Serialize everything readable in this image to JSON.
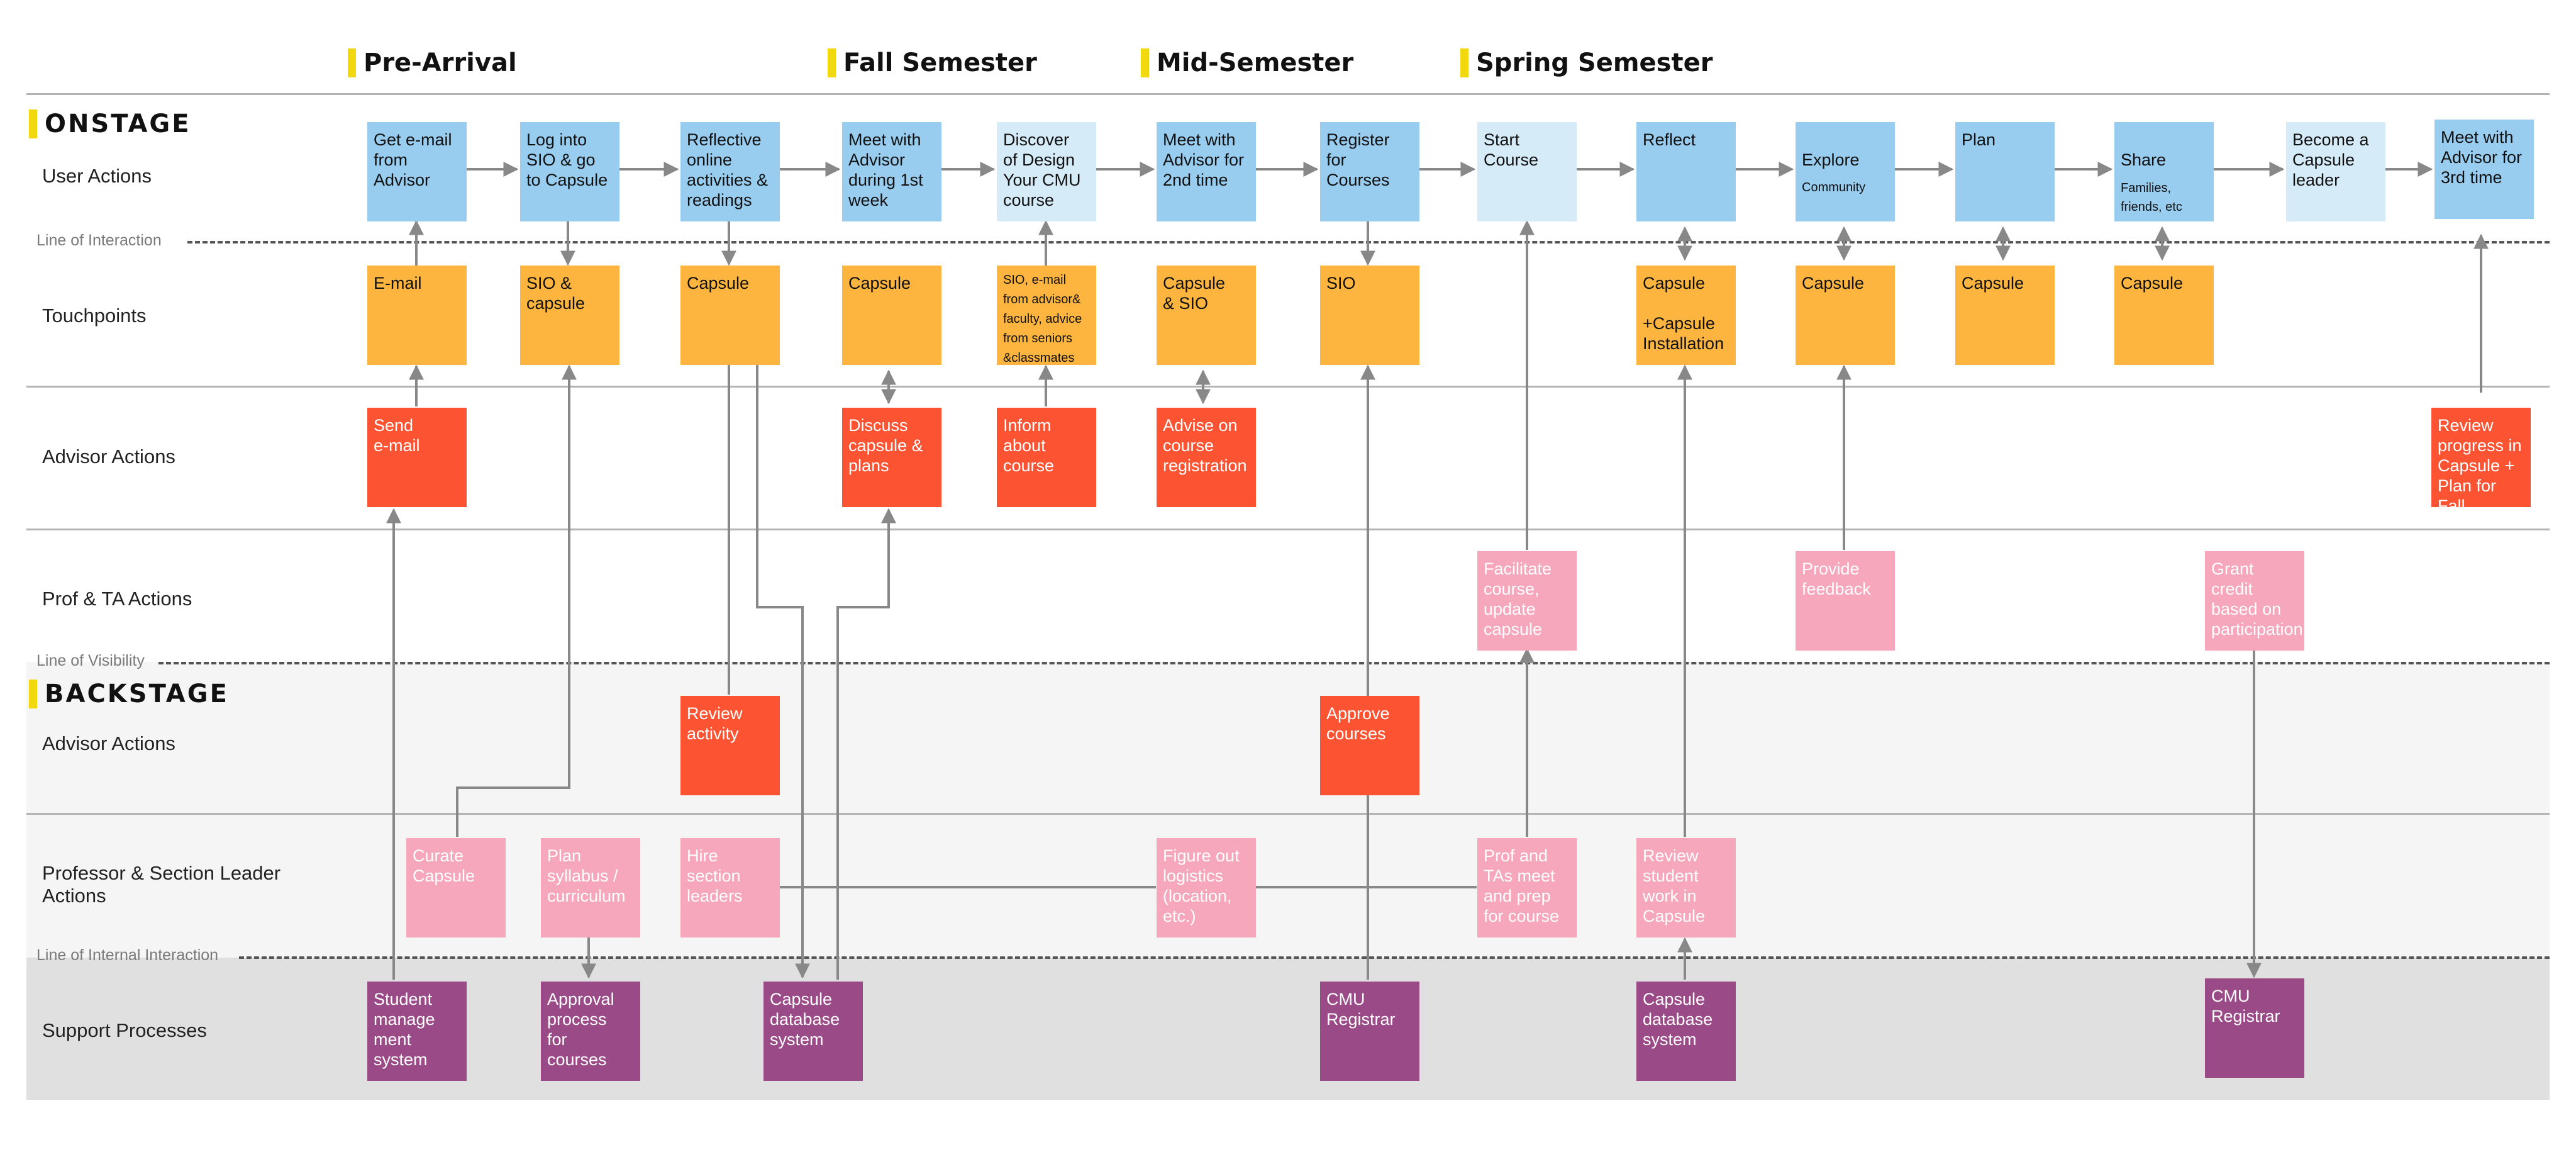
{
  "phases": [
    "Pre-Arrival",
    "Fall Semester",
    "Mid-Semester",
    "Spring Semester"
  ],
  "sections": {
    "onstage": "ONSTAGE",
    "backstage": "BACKSTAGE"
  },
  "rows": {
    "user_actions": "User Actions",
    "touchpoints": "Touchpoints",
    "advisor_actions": "Advisor Actions",
    "prof_ta_actions": "Prof & TA Actions",
    "backstage_advisor_actions": "Advisor Actions",
    "prof_section_leader_actions": "Professor & Section Leader\nActions",
    "support_processes": "Support Processes"
  },
  "lines": {
    "interaction": "Line of Interaction",
    "visibility": "Line of Visibility",
    "internal": "Line of Internal Interaction"
  },
  "user_actions": [
    "Get e-mail\nfrom\nAdvisor",
    "Log into\nSIO & go\nto Capsule",
    "Reflective\nonline\nactivities &\nreadings",
    "Meet with\nAdvisor\nduring 1st\nweek",
    "Discover\nof Design\nYour CMU\ncourse",
    "Meet with\nAdvisor for\n2nd time",
    "Register\nfor\nCourses",
    "Start\nCourse",
    "Reflect",
    "Explore",
    "Plan",
    "Share",
    "Become a\nCapsule\nleader",
    "Meet with\nAdvisor for\n3rd time"
  ],
  "user_action_subtexts": {
    "explore": "Community",
    "share": "Families,\nfriends, etc"
  },
  "touchpoints": [
    "E-mail",
    "SIO &\ncapsule",
    "Capsule",
    "Capsule",
    "SIO, e-mail\nfrom advisor&\nfaculty, advice\nfrom seniors\n&classmates",
    "Capsule\n& SIO",
    "SIO",
    "Capsule\n\n+Capsule\nInstallation",
    "Capsule",
    "Capsule",
    "Capsule"
  ],
  "advisor_actions": [
    "Send\ne-mail",
    "Discuss\ncapsule &\nplans",
    "Inform\nabout\ncourse",
    "Advise on\ncourse\nregistration",
    "Review\nprogress in\nCapsule +\nPlan for Fall"
  ],
  "prof_ta_actions": [
    "Facilitate\ncourse,\nupdate\ncapsule",
    "Provide\nfeedback",
    "Grant credit\nbased on\nparticipation"
  ],
  "backstage_advisor_actions": [
    "Review\nactivity",
    "Approve\ncourses"
  ],
  "prof_section_leader_actions": [
    "Curate\nCapsule",
    "Plan\nsyllabus /\ncurriculum",
    "Hire\nsection\nleaders",
    "Figure out\nlogistics\n(location,\netc.)",
    "Prof and\nTAs meet\nand prep\nfor course",
    "Review\nstudent\nwork in\nCapsule"
  ],
  "support_processes": [
    "Student\nmanage\nment\nsystem",
    "Approval\nprocess\nfor\ncourses",
    "Capsule\ndatabase\nsystem",
    "CMU\nRegistrar",
    "Capsule\ndatabase\nsystem",
    "CMU\nRegistrar"
  ],
  "colors": {
    "user_action": "#99cdf0",
    "user_action_light": "#d6ebf8",
    "touchpoint": "#fdb53f",
    "advisor": "#fc5332",
    "prof": "#f6a7bb",
    "support": "#9b4a88",
    "phase_marker": "#f2d80f",
    "backstage_band": "#f5f5f5",
    "support_band": "#e0e0e0"
  }
}
